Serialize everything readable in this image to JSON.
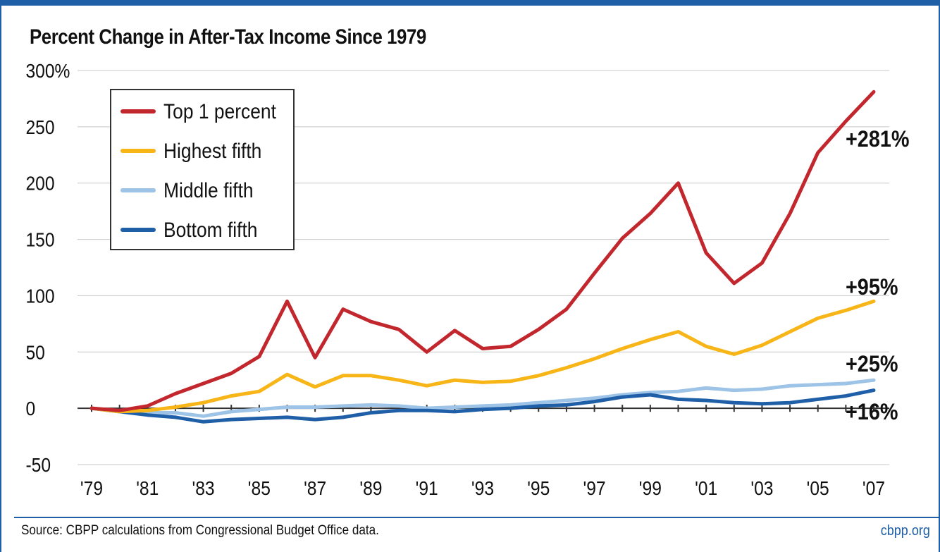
{
  "chart_data": {
    "type": "line",
    "title": "Percent Change in After-Tax Income Since 1979",
    "x": [
      "1979",
      "1980",
      "1981",
      "1982",
      "1983",
      "1984",
      "1985",
      "1986",
      "1987",
      "1988",
      "1989",
      "1990",
      "1991",
      "1992",
      "1993",
      "1994",
      "1995",
      "1996",
      "1997",
      "1998",
      "1999",
      "2000",
      "2001",
      "2002",
      "2003",
      "2004",
      "2005",
      "2006",
      "2007"
    ],
    "x_tick_labels": [
      "'79",
      "'81",
      "'83",
      "'85",
      "'87",
      "'89",
      "'91",
      "'93",
      "'95",
      "'97",
      "'99",
      "'01",
      "'03",
      "'05",
      "'07"
    ],
    "ylim": [
      -50,
      300
    ],
    "y_ticks": [
      -50,
      0,
      50,
      100,
      150,
      200,
      250,
      300
    ],
    "y_tick_labels": [
      "-50",
      "0",
      "50",
      "100",
      "150",
      "200",
      "250",
      "300%"
    ],
    "grid": "horizontal",
    "legend": "top-left",
    "series": [
      {
        "name": "Top 1 percent",
        "color": "#c1272d",
        "end_label": "+281%",
        "values": [
          0,
          -2,
          2,
          13,
          22,
          31,
          46,
          95,
          45,
          88,
          77,
          70,
          50,
          69,
          53,
          55,
          70,
          88,
          120,
          151,
          173,
          200,
          138,
          111,
          129,
          173,
          227,
          255,
          281
        ]
      },
      {
        "name": "Highest fifth",
        "color": "#f7b518",
        "end_label": "+95%",
        "values": [
          0,
          -3,
          -2,
          1,
          5,
          11,
          15,
          30,
          19,
          29,
          29,
          25,
          20,
          25,
          23,
          24,
          29,
          36,
          44,
          53,
          61,
          68,
          55,
          48,
          56,
          68,
          80,
          87,
          95
        ]
      },
      {
        "name": "Middle fifth",
        "color": "#9dc3e6",
        "end_label": "+25%",
        "values": [
          0,
          -3,
          -4,
          -4,
          -7,
          -3,
          -1,
          1,
          1,
          2,
          3,
          2,
          0,
          1,
          2,
          3,
          5,
          7,
          9,
          12,
          14,
          15,
          18,
          16,
          17,
          20,
          21,
          22,
          25
        ]
      },
      {
        "name": "Bottom fifth",
        "color": "#1f5fa8",
        "end_label": "+16%",
        "values": [
          0,
          -3,
          -6,
          -8,
          -12,
          -10,
          -9,
          -8,
          -10,
          -8,
          -4,
          -2,
          -2,
          -3,
          -1,
          0,
          2,
          3,
          6,
          10,
          12,
          8,
          7,
          5,
          4,
          5,
          8,
          11,
          16
        ]
      }
    ]
  },
  "footer": {
    "source": "Source: CBPP calculations from Congressional Budget Office data.",
    "site": "cbpp.org"
  }
}
